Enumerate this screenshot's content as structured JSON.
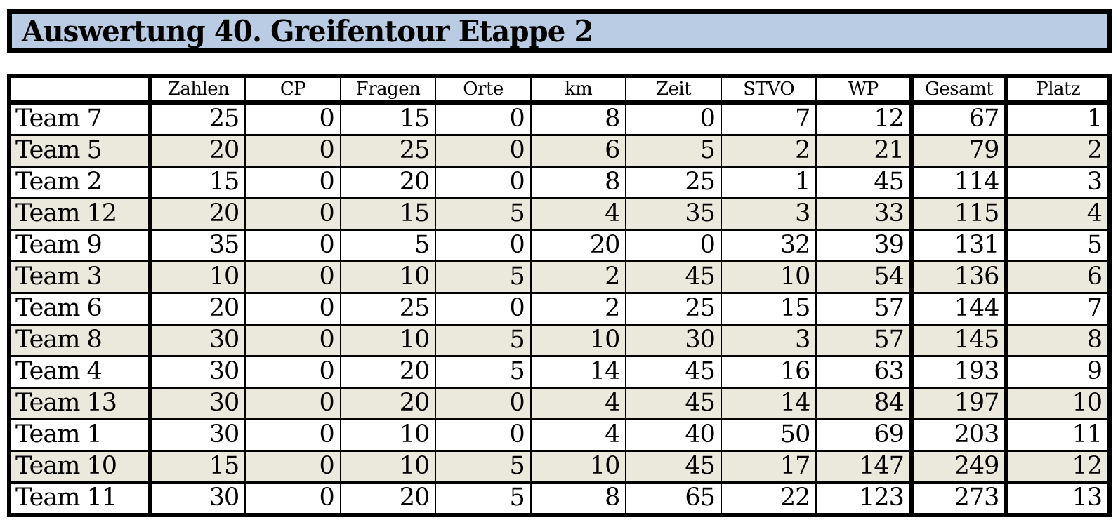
{
  "title": "Auswertung 40. Greifentour Etappe 2",
  "colors": {
    "title_background": "#b9cce4",
    "row_stripe": "#ebe9dc",
    "border": "#000000",
    "page_background": "#ffffff"
  },
  "table": {
    "columns": [
      "",
      "Zahlen",
      "CP",
      "Fragen",
      "Orte",
      "km",
      "Zeit",
      "STVO",
      "WP",
      "Gesamt",
      "Platz"
    ],
    "rows": [
      {
        "team": "Team 7",
        "values": [
          25,
          0,
          15,
          0,
          8,
          0,
          7,
          12,
          67,
          1
        ]
      },
      {
        "team": "Team 5",
        "values": [
          20,
          0,
          25,
          0,
          6,
          5,
          2,
          21,
          79,
          2
        ]
      },
      {
        "team": "Team 2",
        "values": [
          15,
          0,
          20,
          0,
          8,
          25,
          1,
          45,
          114,
          3
        ]
      },
      {
        "team": "Team 12",
        "values": [
          20,
          0,
          15,
          5,
          4,
          35,
          3,
          33,
          115,
          4
        ]
      },
      {
        "team": "Team 9",
        "values": [
          35,
          0,
          5,
          0,
          20,
          0,
          32,
          39,
          131,
          5
        ]
      },
      {
        "team": "Team 3",
        "values": [
          10,
          0,
          10,
          5,
          2,
          45,
          10,
          54,
          136,
          6
        ]
      },
      {
        "team": "Team 6",
        "values": [
          20,
          0,
          25,
          0,
          2,
          25,
          15,
          57,
          144,
          7
        ]
      },
      {
        "team": "Team 8",
        "values": [
          30,
          0,
          10,
          5,
          10,
          30,
          3,
          57,
          145,
          8
        ]
      },
      {
        "team": "Team 4",
        "values": [
          30,
          0,
          20,
          5,
          14,
          45,
          16,
          63,
          193,
          9
        ]
      },
      {
        "team": "Team 13",
        "values": [
          30,
          0,
          20,
          0,
          4,
          45,
          14,
          84,
          197,
          10
        ]
      },
      {
        "team": "Team 1",
        "values": [
          30,
          0,
          10,
          0,
          4,
          40,
          50,
          69,
          203,
          11
        ]
      },
      {
        "team": "Team 10",
        "values": [
          15,
          0,
          10,
          5,
          10,
          45,
          17,
          147,
          249,
          12
        ]
      },
      {
        "team": "Team 11",
        "values": [
          30,
          0,
          20,
          5,
          8,
          65,
          22,
          123,
          273,
          13
        ]
      }
    ]
  }
}
